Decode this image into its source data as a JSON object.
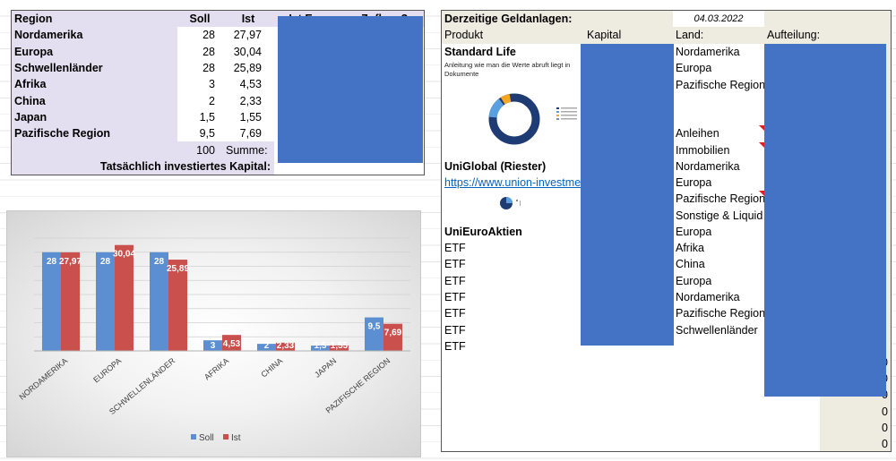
{
  "left_table": {
    "headers": {
      "region": "Region",
      "soll": "Soll",
      "ist": "Ist",
      "ist_euro": "Ist Euro",
      "zufluss": "Zufluss?"
    },
    "rows": [
      {
        "region": "Nordamerika",
        "soll": "28",
        "ist": "27,97"
      },
      {
        "region": "Europa",
        "soll": "28",
        "ist": "30,04"
      },
      {
        "region": "Schwellenländer",
        "soll": "28",
        "ist": "25,89"
      },
      {
        "region": "Afrika",
        "soll": "3",
        "ist": "4,53"
      },
      {
        "region": "China",
        "soll": "2",
        "ist": "2,33"
      },
      {
        "region": "Japan",
        "soll": "1,5",
        "ist": "1,55"
      },
      {
        "region": "Pazifische Region",
        "soll": "9,5",
        "ist": "7,69"
      }
    ],
    "sum_value": "100",
    "sum_label": "Summe:",
    "capital_label": "Tatsächlich investiertes Kapital:"
  },
  "right_table": {
    "title": "Derzeitige Geldanlagen:",
    "date": "04.03.2022",
    "headers": {
      "produkt": "Produkt",
      "kapital": "Kapital",
      "land": "Land:",
      "aufteilung": "Aufteilung:"
    },
    "standard_life": "Standard Life",
    "note_line1": "Anleitung wie man die Werte abruft liegt in",
    "note_line2": "Dokumente",
    "uniglobal": "UniGlobal (Riester)",
    "link": "https://www.union-investment",
    "unieuro": "UniEuroAktien",
    "etf_label": "ETF",
    "lands": [
      "Nordamerika",
      "Europa",
      "Pazifische Region",
      "",
      "Anleihen",
      "Immobilien",
      "Nordamerika",
      "Europa",
      "Pazifische Region",
      "Sonstige & Liquid",
      "Europa",
      "Afrika",
      "China",
      "Europa",
      "Nordamerika",
      "Pazifische Region",
      "Schwellenländer"
    ],
    "zeros": [
      "0",
      "0",
      "0",
      "0",
      "0",
      "0"
    ]
  },
  "chart_data": {
    "type": "bar",
    "categories": [
      "NORDAMERIKA",
      "EUROPA",
      "SCHWELLENLÄNDER",
      "AFRIKA",
      "CHINA",
      "JAPAN",
      "PAZIFISCHE REGION"
    ],
    "series": [
      {
        "name": "Soll",
        "values": [
          28,
          28,
          28,
          3,
          2,
          1.5,
          9.5
        ],
        "labels": [
          "28",
          "28",
          "28",
          "3",
          "2",
          "1,5",
          "9,5"
        ],
        "color": "#5b8fd1"
      },
      {
        "name": "Ist",
        "values": [
          27.97,
          30.04,
          25.89,
          4.53,
          2.33,
          1.55,
          7.69
        ],
        "labels": [
          "27,97",
          "30,04",
          "25,89",
          "4,53",
          "2,33",
          "1,55",
          "7,69"
        ],
        "color": "#c9504d"
      }
    ],
    "ylim": [
      0,
      32
    ],
    "grid": true,
    "legend": "bottom"
  },
  "colors": {
    "mask": "#4472c4",
    "header_bg": "#e4dff0",
    "beige": "#eeebe0"
  }
}
